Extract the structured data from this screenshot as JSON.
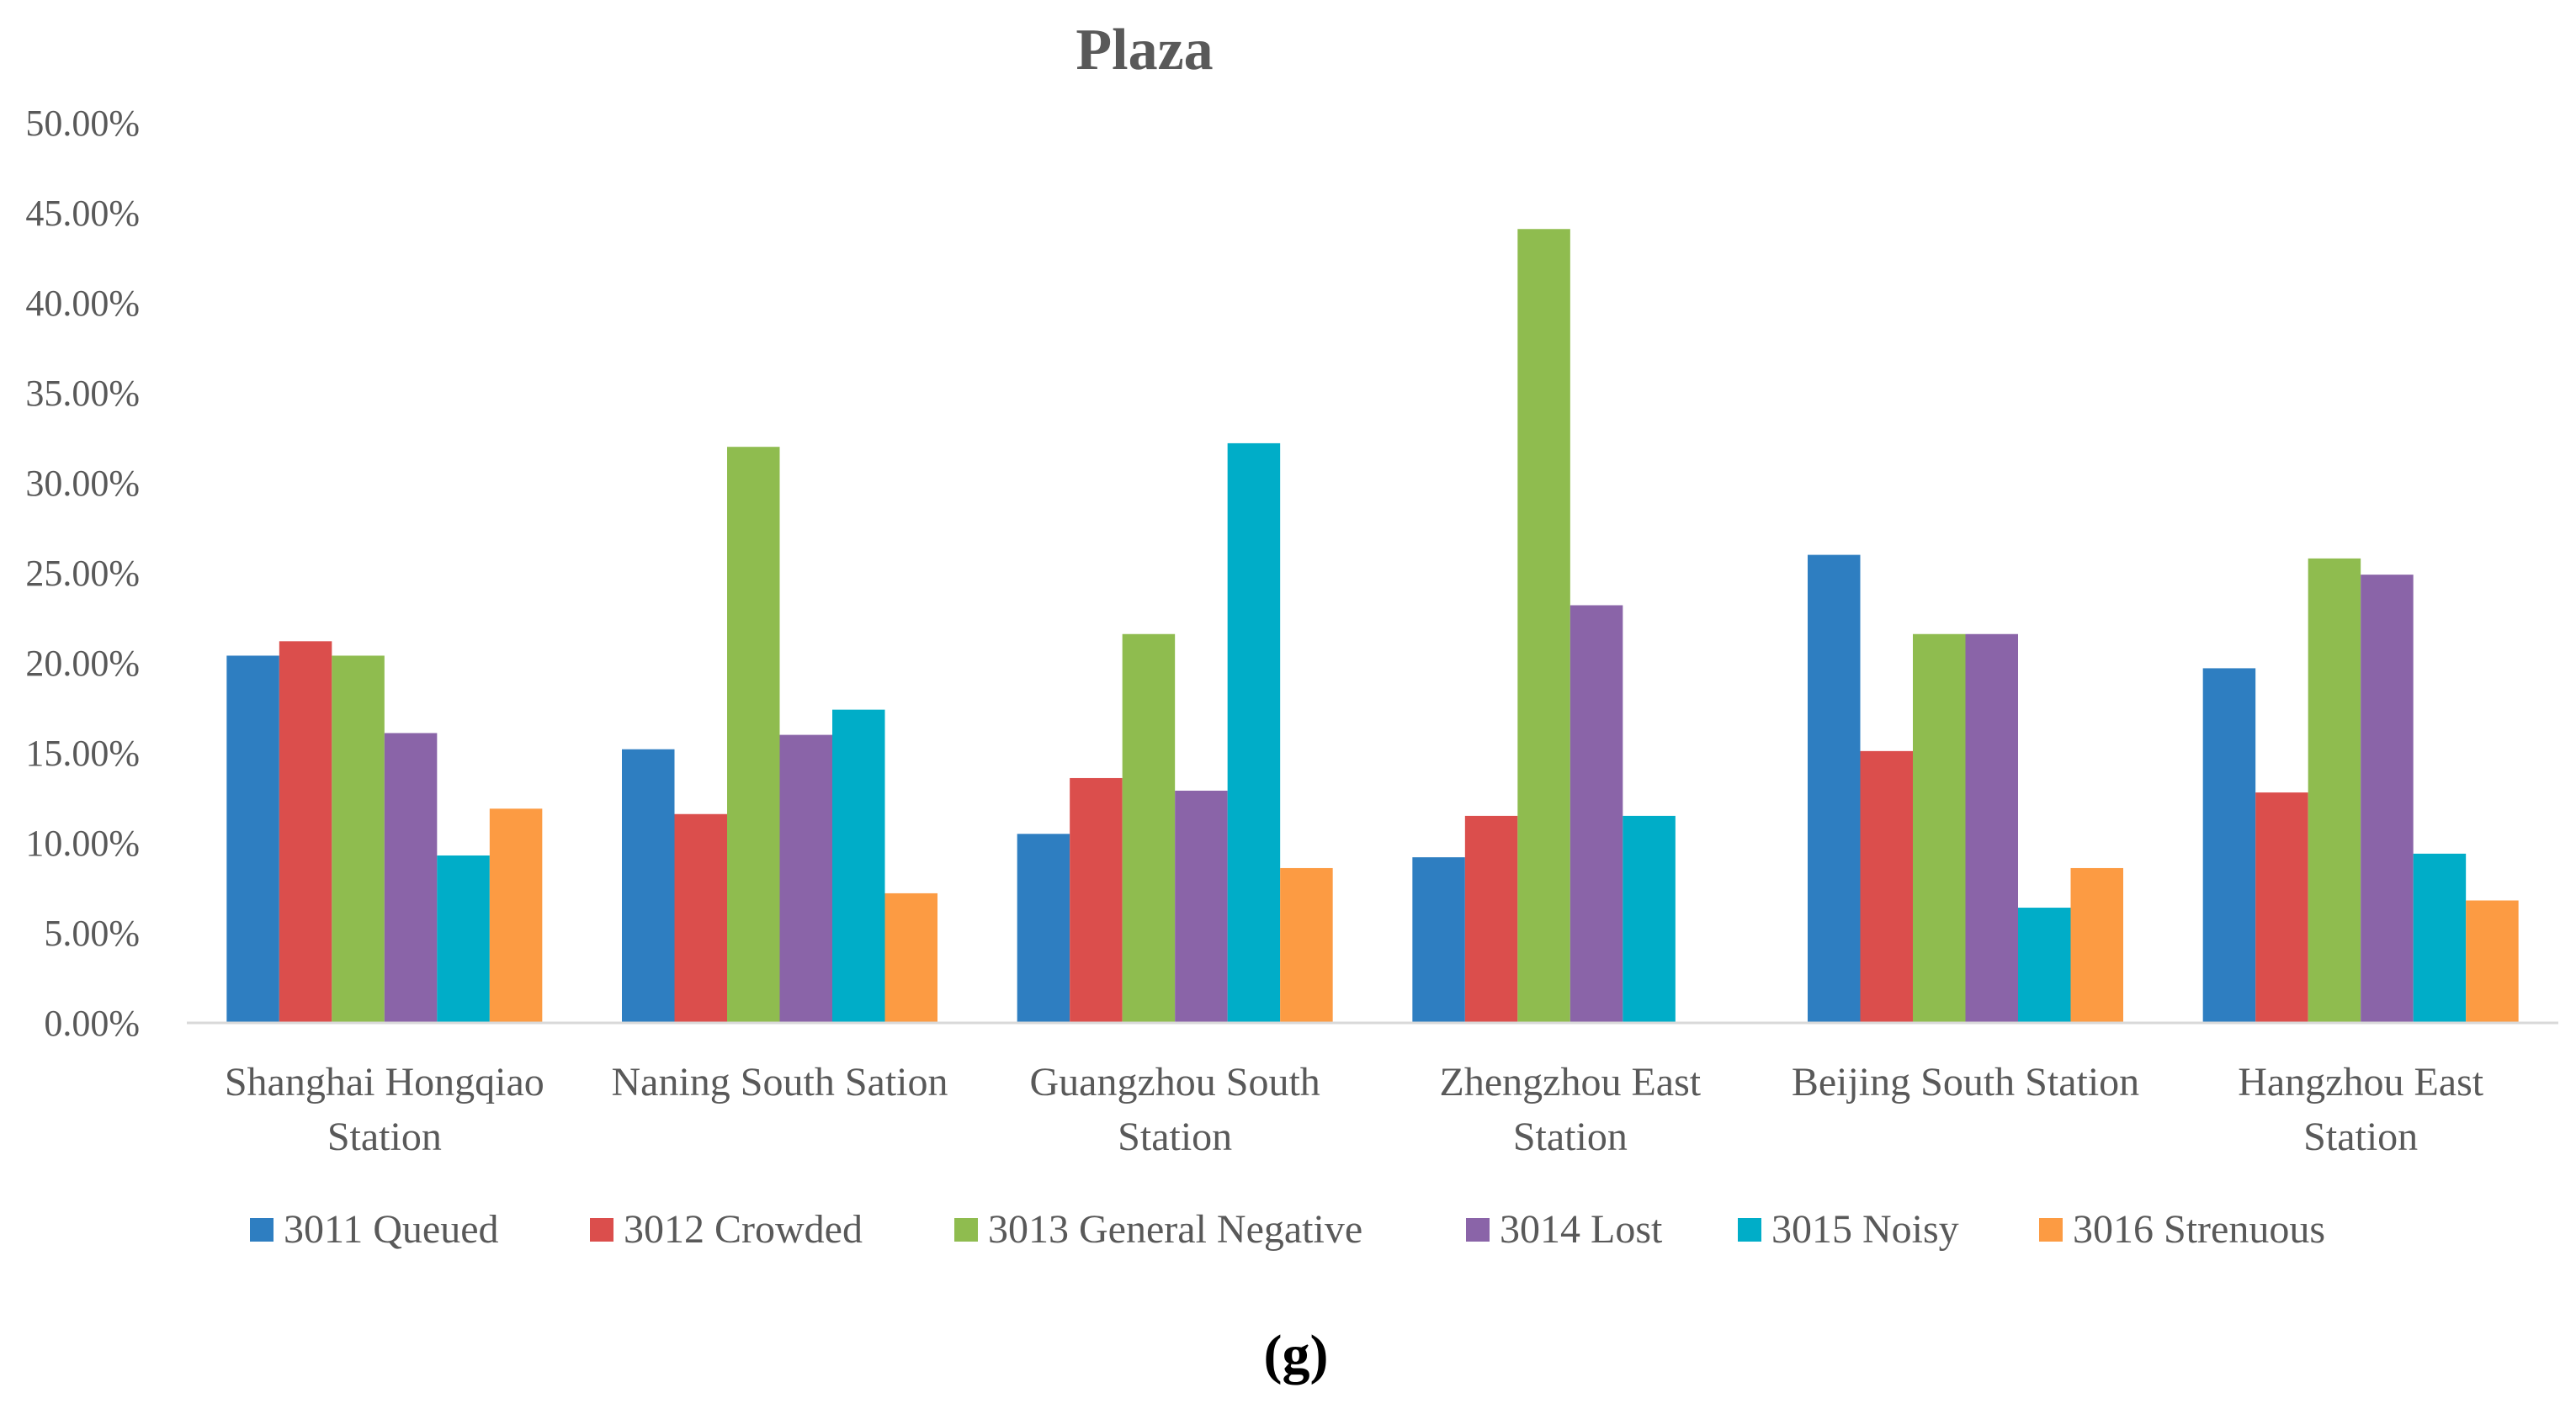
{
  "caption": "(g)",
  "chart_data": {
    "type": "bar",
    "title": "Plaza",
    "xlabel": "",
    "ylabel": "",
    "ylim": [
      0,
      50
    ],
    "y_ticks": [
      "0.00%",
      "5.00%",
      "10.00%",
      "15.00%",
      "20.00%",
      "25.00%",
      "30.00%",
      "35.00%",
      "40.00%",
      "45.00%",
      "50.00%"
    ],
    "grid": false,
    "legend_position": "bottom",
    "categories": [
      [
        "Shanghai Hongqiao",
        "Station"
      ],
      [
        "Naning South Sation"
      ],
      [
        "Guangzhou South",
        "Station"
      ],
      [
        "Zhengzhou East",
        "Station"
      ],
      [
        "Beijing South Station"
      ],
      [
        "Hangzhou East",
        "Station"
      ]
    ],
    "series": [
      {
        "name": "3011 Queued",
        "color": "#2E7EC1",
        "values": [
          20.4,
          15.2,
          10.5,
          9.2,
          26.0,
          19.7
        ]
      },
      {
        "name": "3012 Crowded",
        "color": "#DB4E4C",
        "values": [
          21.2,
          11.6,
          13.6,
          11.5,
          15.1,
          12.8
        ]
      },
      {
        "name": "3013 General Negative",
        "color": "#8FBC4F",
        "values": [
          20.4,
          32.0,
          21.6,
          44.1,
          21.6,
          25.8
        ]
      },
      {
        "name": "3014 Lost",
        "color": "#8A64A8",
        "values": [
          16.1,
          16.0,
          12.9,
          23.2,
          21.6,
          24.9
        ]
      },
      {
        "name": "3015 Noisy",
        "color": "#00ADC8",
        "values": [
          9.3,
          17.4,
          32.2,
          11.5,
          6.4,
          9.4
        ]
      },
      {
        "name": "3016 Strenuous",
        "color": "#FC9B43",
        "values": [
          11.9,
          7.2,
          8.6,
          0,
          8.6,
          6.8
        ]
      }
    ]
  }
}
